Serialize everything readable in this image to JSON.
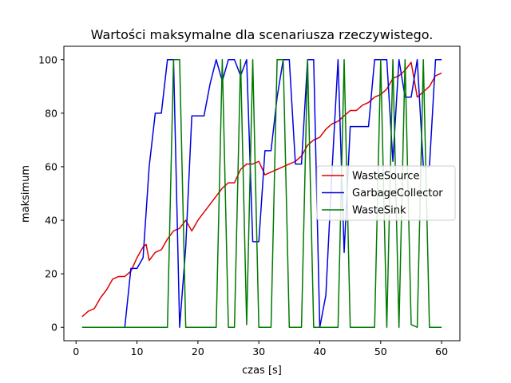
{
  "chart_data": {
    "type": "line",
    "title": "Wartości maksymalne dla scenariusza rzeczywistego.",
    "xlabel": "czas [s]",
    "ylabel": "maksimum",
    "xlim": [
      -2,
      63
    ],
    "ylim": [
      -5,
      105
    ],
    "xticks": [
      0,
      10,
      20,
      30,
      40,
      50,
      60
    ],
    "yticks": [
      0,
      20,
      40,
      60,
      80,
      100
    ],
    "grid": false,
    "legend_position": "center-right",
    "series": [
      {
        "name": "WasteSource",
        "color": "#e00000",
        "points": [
          [
            1,
            4
          ],
          [
            2,
            6
          ],
          [
            3,
            7
          ],
          [
            4,
            11
          ],
          [
            5,
            14
          ],
          [
            6,
            18
          ],
          [
            7,
            19
          ],
          [
            8,
            19
          ],
          [
            9,
            21
          ],
          [
            10,
            26
          ],
          [
            11,
            30
          ],
          [
            11.5,
            31
          ],
          [
            12,
            25
          ],
          [
            13,
            28
          ],
          [
            14,
            29
          ],
          [
            15,
            33
          ],
          [
            16,
            36
          ],
          [
            17,
            37
          ],
          [
            18,
            40
          ],
          [
            19,
            36
          ],
          [
            20,
            40
          ],
          [
            21,
            43
          ],
          [
            22,
            46
          ],
          [
            23,
            49
          ],
          [
            24,
            52
          ],
          [
            25,
            54
          ],
          [
            26,
            54
          ],
          [
            27,
            59
          ],
          [
            28,
            61
          ],
          [
            29,
            61
          ],
          [
            30,
            62
          ],
          [
            31,
            57
          ],
          [
            32,
            58
          ],
          [
            33,
            59
          ],
          [
            34,
            60
          ],
          [
            35,
            61
          ],
          [
            36,
            62
          ],
          [
            37,
            64
          ],
          [
            38,
            68
          ],
          [
            39,
            70
          ],
          [
            40,
            71
          ],
          [
            41,
            74
          ],
          [
            42,
            76
          ],
          [
            43,
            77
          ],
          [
            44,
            79
          ],
          [
            45,
            81
          ],
          [
            46,
            81
          ],
          [
            47,
            83
          ],
          [
            48,
            84
          ],
          [
            49,
            86
          ],
          [
            50,
            87
          ],
          [
            51,
            89
          ],
          [
            52,
            93
          ],
          [
            53,
            94
          ],
          [
            54,
            96
          ],
          [
            55,
            99
          ],
          [
            56,
            86
          ],
          [
            57,
            88
          ],
          [
            58,
            90
          ],
          [
            59,
            94
          ],
          [
            60,
            95
          ]
        ]
      },
      {
        "name": "GarbageCollector",
        "color": "#0000e0",
        "points": [
          [
            1,
            0
          ],
          [
            8,
            0
          ],
          [
            9,
            22
          ],
          [
            10,
            22
          ],
          [
            11,
            26
          ],
          [
            12,
            60
          ],
          [
            13,
            80
          ],
          [
            14,
            80
          ],
          [
            15,
            100
          ],
          [
            16,
            100
          ],
          [
            17,
            0
          ],
          [
            18,
            30
          ],
          [
            19,
            79
          ],
          [
            20,
            79
          ],
          [
            21,
            79
          ],
          [
            22,
            91
          ],
          [
            23,
            100
          ],
          [
            24,
            92
          ],
          [
            25,
            100
          ],
          [
            26,
            100
          ],
          [
            27,
            94
          ],
          [
            28,
            100
          ],
          [
            29,
            32
          ],
          [
            30,
            32
          ],
          [
            31,
            66
          ],
          [
            32,
            66
          ],
          [
            33,
            86
          ],
          [
            34,
            100
          ],
          [
            35,
            100
          ],
          [
            36,
            61
          ],
          [
            37,
            61
          ],
          [
            38,
            100
          ],
          [
            39,
            100
          ],
          [
            40,
            0
          ],
          [
            41,
            12
          ],
          [
            42,
            58
          ],
          [
            43,
            100
          ],
          [
            44,
            28
          ],
          [
            45,
            75
          ],
          [
            46,
            75
          ],
          [
            47,
            75
          ],
          [
            48,
            75
          ],
          [
            49,
            100
          ],
          [
            50,
            100
          ],
          [
            51,
            100
          ],
          [
            52,
            62
          ],
          [
            53,
            100
          ],
          [
            54,
            86
          ],
          [
            55,
            86
          ],
          [
            56,
            100
          ],
          [
            57,
            60
          ],
          [
            58,
            60
          ],
          [
            59,
            100
          ],
          [
            60,
            100
          ]
        ]
      },
      {
        "name": "WasteSink",
        "color": "#007a00",
        "points": [
          [
            1,
            0
          ],
          [
            15,
            0
          ],
          [
            16,
            100
          ],
          [
            17,
            100
          ],
          [
            18,
            0
          ],
          [
            23,
            0
          ],
          [
            24,
            100
          ],
          [
            25,
            0
          ],
          [
            26,
            0
          ],
          [
            27,
            100
          ],
          [
            28,
            1
          ],
          [
            29,
            100
          ],
          [
            30,
            0
          ],
          [
            32,
            0
          ],
          [
            33,
            100
          ],
          [
            34,
            100
          ],
          [
            35,
            0
          ],
          [
            37,
            0
          ],
          [
            38,
            100
          ],
          [
            39,
            0
          ],
          [
            43,
            0
          ],
          [
            44,
            100
          ],
          [
            45,
            0
          ],
          [
            49,
            0
          ],
          [
            50,
            100
          ],
          [
            51,
            0
          ],
          [
            52,
            100
          ],
          [
            53,
            0
          ],
          [
            54,
            100
          ],
          [
            55,
            1
          ],
          [
            56,
            0
          ],
          [
            57,
            100
          ],
          [
            58,
            0
          ],
          [
            60,
            0
          ]
        ]
      }
    ]
  }
}
